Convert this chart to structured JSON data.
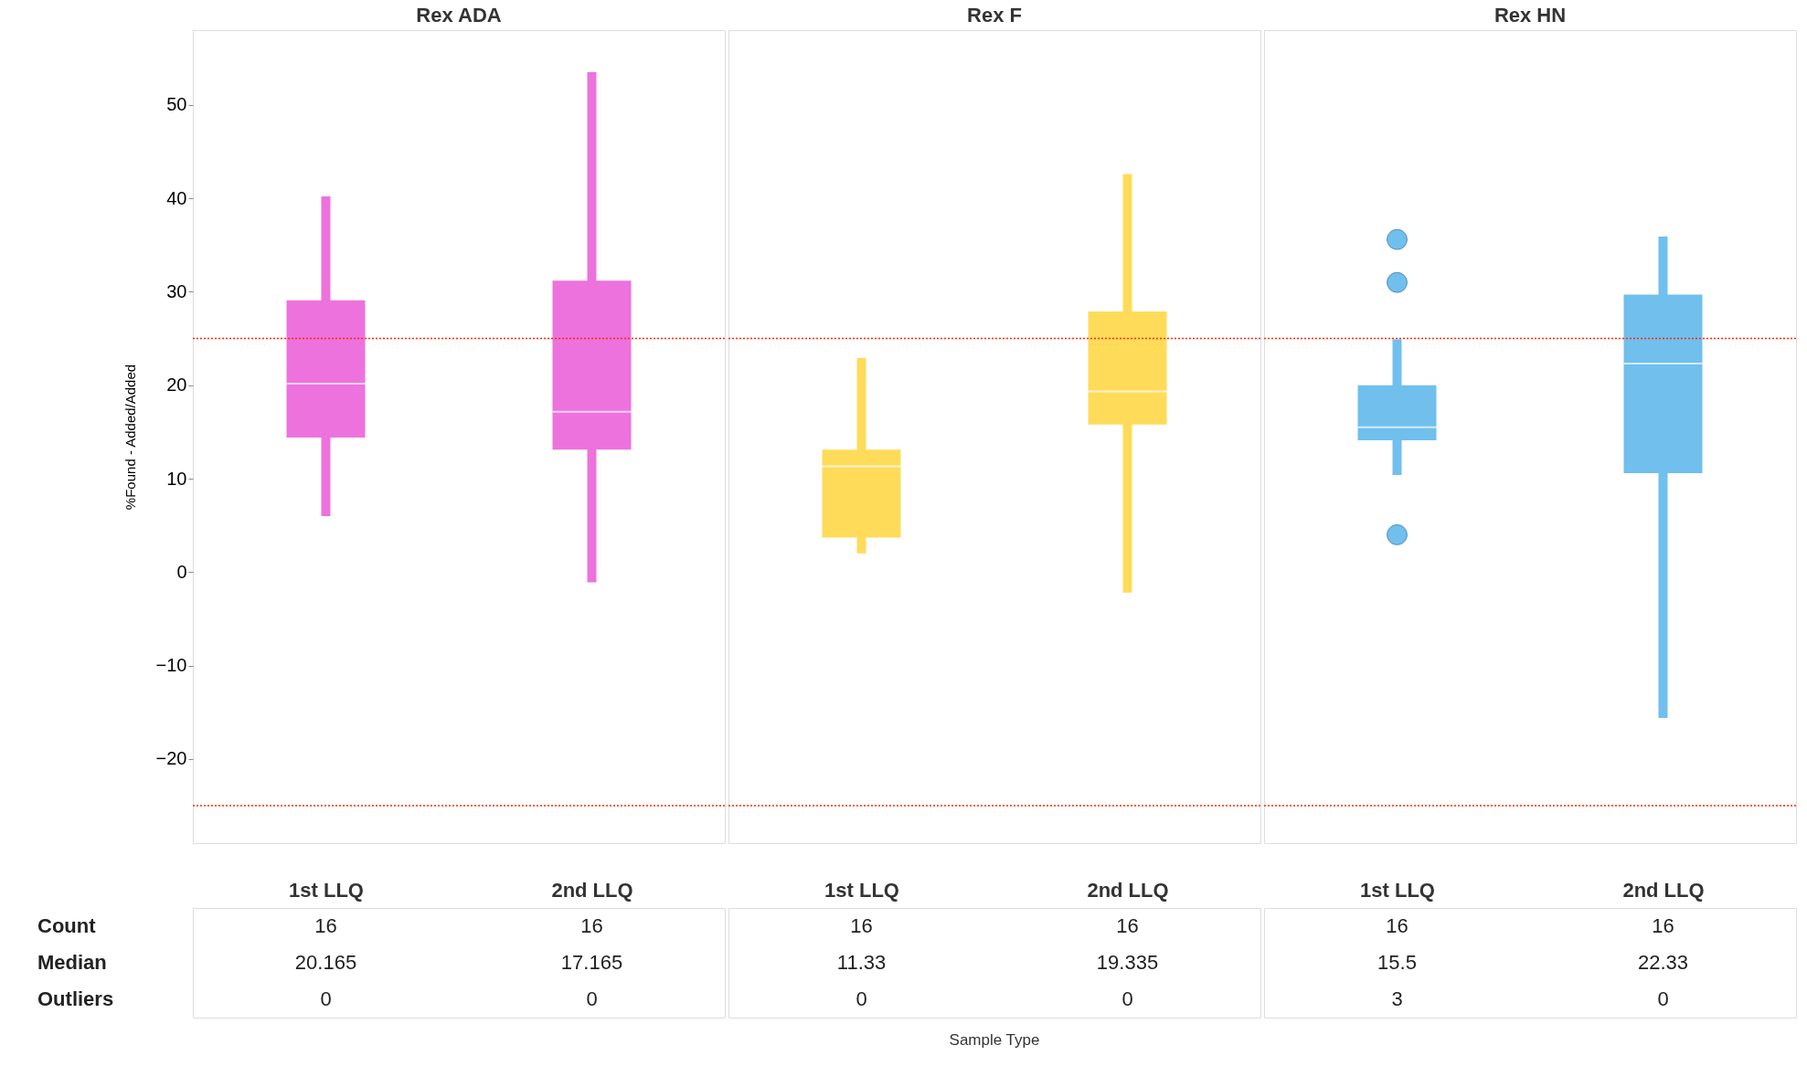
{
  "chart_data": [
    {
      "type": "box",
      "title": "Rex ADA",
      "ylabel": "%Found - Added/Added",
      "categories": [
        "1st LLQ",
        "2nd LLQ"
      ],
      "series": [
        {
          "color": "#ed72dd",
          "value_labels": [
            "20.165",
            "17.165"
          ],
          "boxes": [
            {
              "low": 6.0,
              "q1": 14.4,
              "median": 20.165,
              "q3": 29.1,
              "high": 40.2
            },
            {
              "low": -1.1,
              "q1": 13.1,
              "median": 17.165,
              "q3": 31.2,
              "high": 53.5
            }
          ]
        }
      ],
      "ylim": [
        -29,
        58
      ],
      "yticks": [
        -20,
        -10,
        0,
        10,
        20,
        30,
        40,
        50
      ],
      "ref_lines": [
        {
          "axis": "y",
          "value": 25,
          "color": "#ff2a00",
          "line_style": "dotted"
        },
        {
          "axis": "y",
          "value": -25,
          "color": "#ff2a00",
          "line_style": "dotted"
        }
      ],
      "annotations": [
        "Count",
        "Median",
        "Outliers",
        "16",
        "16",
        "0",
        "0"
      ]
    },
    {
      "type": "box",
      "title": "Rex F",
      "xlabel": "Sample Type",
      "categories": [
        "1st LLQ",
        "2nd LLQ"
      ],
      "series": [
        {
          "color": "#ffdb5a",
          "value_labels": [
            "11.33",
            "19.335"
          ],
          "boxes": [
            {
              "low": 2.0,
              "q1": 3.7,
              "median": 11.33,
              "q3": 13.1,
              "high": 22.9
            },
            {
              "low": -2.2,
              "q1": 15.8,
              "median": 19.335,
              "q3": 27.9,
              "high": 42.6
            }
          ]
        }
      ],
      "ylim": [
        -29,
        58
      ],
      "yticks": [
        -20,
        -10,
        0,
        10,
        20,
        30,
        40,
        50
      ],
      "tick_labels": false,
      "ref_lines": [
        {
          "axis": "y",
          "value": 25,
          "color": "#ff2a00",
          "line_style": "dotted"
        },
        {
          "axis": "y",
          "value": -25,
          "color": "#ff2a00",
          "line_style": "dotted"
        }
      ],
      "annotations": [
        "16",
        "16",
        "0",
        "0"
      ]
    },
    {
      "type": "box",
      "title": "Rex HN",
      "categories": [
        "1st LLQ",
        "2nd LLQ"
      ],
      "series": [
        {
          "color": "#71bfec",
          "value_labels": [
            "15.5",
            "22.33"
          ],
          "boxes": [
            {
              "low": 10.4,
              "q1": 14.1,
              "median": 15.5,
              "q3": 20.0,
              "high": 24.9,
              "outliers": [
                35.6,
                31.0,
                4.0
              ]
            },
            {
              "low": -15.6,
              "q1": 10.6,
              "median": 22.33,
              "q3": 29.7,
              "high": 35.9
            }
          ]
        }
      ],
      "ylim": [
        -29,
        58
      ],
      "yticks": [
        -20,
        -10,
        0,
        10,
        20,
        30,
        40,
        50
      ],
      "tick_labels": false,
      "ref_lines": [
        {
          "axis": "y",
          "value": 25,
          "color": "#ff2a00",
          "line_style": "dotted"
        },
        {
          "axis": "y",
          "value": -25,
          "color": "#ff2a00",
          "line_style": "dotted"
        }
      ],
      "annotations": [
        "16",
        "16",
        "3",
        "0"
      ]
    }
  ]
}
